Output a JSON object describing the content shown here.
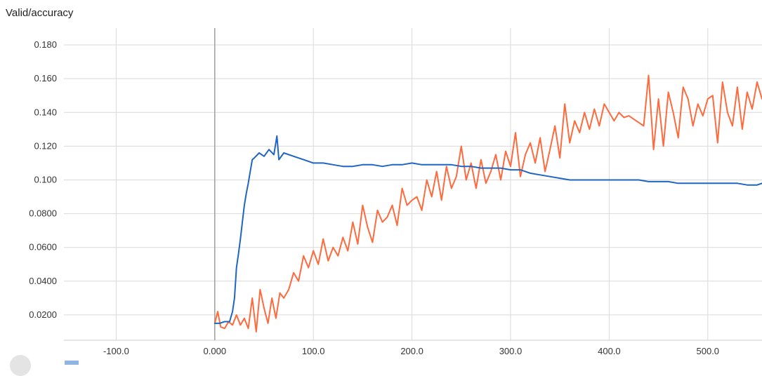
{
  "card": {
    "title": "Valid/accuracy"
  },
  "colors": {
    "series_blue": "#1f65c2",
    "series_orange": "#ff6a3d",
    "grid": "#d9d9d9",
    "zero_axis": "#9e9e9e"
  },
  "chart_data": {
    "type": "line",
    "title": "Valid/accuracy",
    "xlabel": "",
    "ylabel": "",
    "xlim": [
      -153,
      555
    ],
    "ylim": [
      0.005,
      0.19
    ],
    "grid": true,
    "x_ticks": [
      -100,
      0,
      100,
      200,
      300,
      400,
      500
    ],
    "x_tick_labels": [
      "-100.0",
      "0.000",
      "100.0",
      "200.0",
      "300.0",
      "400.0",
      "500.0"
    ],
    "y_ticks": [
      0.02,
      0.04,
      0.06,
      0.08,
      0.1,
      0.12,
      0.14,
      0.16,
      0.18
    ],
    "y_tick_labels": [
      "0.0200",
      "0.0400",
      "0.0600",
      "0.0800",
      "0.100",
      "0.120",
      "0.140",
      "0.160",
      "0.180"
    ],
    "series": [
      {
        "color": "#1f65c2",
        "x": [
          0,
          5,
          10,
          15,
          18,
          20,
          22,
          24,
          26,
          28,
          30,
          32,
          34,
          36,
          38,
          40,
          45,
          50,
          55,
          60,
          63,
          65,
          70,
          80,
          90,
          100,
          110,
          120,
          130,
          140,
          150,
          160,
          170,
          180,
          190,
          200,
          210,
          220,
          230,
          240,
          250,
          260,
          270,
          280,
          290,
          300,
          310,
          320,
          330,
          340,
          350,
          360,
          370,
          380,
          390,
          400,
          410,
          420,
          430,
          440,
          450,
          460,
          470,
          480,
          490,
          500,
          510,
          520,
          530,
          540,
          550,
          555
        ],
        "y": [
          0.015,
          0.015,
          0.016,
          0.016,
          0.022,
          0.03,
          0.048,
          0.056,
          0.065,
          0.075,
          0.085,
          0.092,
          0.098,
          0.105,
          0.112,
          0.113,
          0.116,
          0.114,
          0.118,
          0.115,
          0.126,
          0.112,
          0.116,
          0.114,
          0.112,
          0.11,
          0.11,
          0.109,
          0.108,
          0.108,
          0.109,
          0.109,
          0.108,
          0.109,
          0.109,
          0.11,
          0.109,
          0.109,
          0.109,
          0.109,
          0.108,
          0.108,
          0.107,
          0.107,
          0.107,
          0.106,
          0.106,
          0.104,
          0.103,
          0.102,
          0.101,
          0.1,
          0.1,
          0.1,
          0.1,
          0.1,
          0.1,
          0.1,
          0.1,
          0.099,
          0.099,
          0.099,
          0.098,
          0.098,
          0.098,
          0.098,
          0.098,
          0.098,
          0.098,
          0.097,
          0.097,
          0.098
        ]
      },
      {
        "color": "#ff6a3d",
        "x": [
          0,
          3,
          6,
          10,
          14,
          18,
          22,
          26,
          30,
          34,
          38,
          42,
          46,
          50,
          54,
          58,
          62,
          66,
          70,
          75,
          80,
          85,
          90,
          95,
          100,
          105,
          110,
          115,
          120,
          125,
          130,
          135,
          140,
          145,
          150,
          155,
          160,
          165,
          170,
          175,
          180,
          185,
          190,
          195,
          200,
          205,
          210,
          215,
          220,
          225,
          230,
          235,
          240,
          245,
          250,
          255,
          260,
          265,
          270,
          275,
          280,
          285,
          290,
          295,
          300,
          305,
          310,
          315,
          320,
          325,
          330,
          335,
          340,
          345,
          350,
          355,
          360,
          365,
          370,
          375,
          380,
          385,
          390,
          395,
          400,
          405,
          410,
          415,
          420,
          425,
          430,
          435,
          440,
          445,
          450,
          455,
          460,
          465,
          470,
          475,
          480,
          485,
          490,
          495,
          500,
          505,
          510,
          515,
          520,
          525,
          530,
          535,
          540,
          545,
          550,
          555
        ],
        "y": [
          0.015,
          0.022,
          0.013,
          0.012,
          0.016,
          0.014,
          0.02,
          0.014,
          0.018,
          0.012,
          0.03,
          0.01,
          0.035,
          0.024,
          0.015,
          0.03,
          0.018,
          0.033,
          0.03,
          0.035,
          0.045,
          0.04,
          0.055,
          0.048,
          0.058,
          0.05,
          0.065,
          0.052,
          0.06,
          0.055,
          0.066,
          0.058,
          0.075,
          0.062,
          0.085,
          0.072,
          0.063,
          0.082,
          0.075,
          0.078,
          0.085,
          0.073,
          0.095,
          0.085,
          0.088,
          0.09,
          0.082,
          0.1,
          0.09,
          0.105,
          0.088,
          0.108,
          0.095,
          0.102,
          0.12,
          0.1,
          0.11,
          0.095,
          0.112,
          0.098,
          0.105,
          0.115,
          0.1,
          0.117,
          0.108,
          0.128,
          0.102,
          0.115,
          0.122,
          0.11,
          0.125,
          0.105,
          0.118,
          0.132,
          0.113,
          0.145,
          0.122,
          0.135,
          0.128,
          0.14,
          0.13,
          0.142,
          0.132,
          0.145,
          0.14,
          0.135,
          0.14,
          0.137,
          0.138,
          0.136,
          0.134,
          0.132,
          0.162,
          0.118,
          0.148,
          0.12,
          0.152,
          0.14,
          0.125,
          0.155,
          0.148,
          0.132,
          0.145,
          0.138,
          0.148,
          0.15,
          0.122,
          0.158,
          0.14,
          0.132,
          0.155,
          0.13,
          0.152,
          0.142,
          0.158,
          0.148
        ]
      }
    ]
  }
}
